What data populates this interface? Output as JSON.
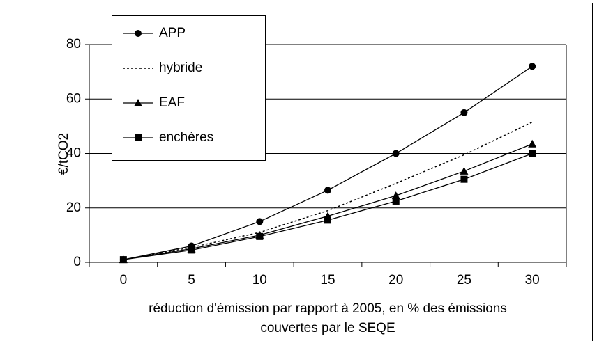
{
  "chart_data": {
    "type": "line",
    "ylabel": "€/tCO2",
    "xlabel": [
      "réduction d'émission par rapport à 2005, en % des émissions",
      "couvertes par le SEQE"
    ],
    "categories": [
      "0",
      "5",
      "10",
      "15",
      "20",
      "25",
      "30"
    ],
    "ylim": [
      0,
      80
    ],
    "yticks": [
      0,
      20,
      40,
      60,
      80
    ],
    "grid": true,
    "series": [
      {
        "name": "APP",
        "color": "#000000",
        "marker": "circle",
        "dash": false,
        "values": [
          1,
          6,
          15,
          26.5,
          40,
          55,
          72
        ]
      },
      {
        "name": "hybride",
        "color": "#000000",
        "marker": "none",
        "dash": true,
        "values": [
          1,
          5.5,
          11,
          19,
          29,
          39.5,
          51.5
        ]
      },
      {
        "name": "EAF",
        "color": "#000000",
        "marker": "triangle",
        "dash": false,
        "values": [
          1,
          5,
          10,
          17,
          24.5,
          33.5,
          43.5
        ]
      },
      {
        "name": "enchères",
        "color": "#000000",
        "marker": "square",
        "dash": false,
        "values": [
          1,
          4.5,
          9.5,
          15.5,
          22.5,
          30.5,
          40
        ]
      }
    ]
  }
}
